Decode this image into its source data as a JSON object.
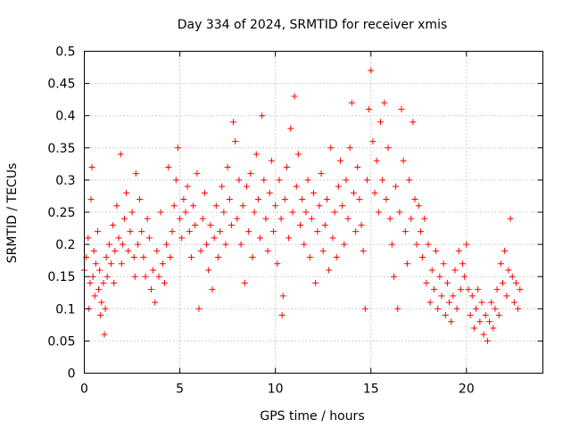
{
  "chart_data": {
    "type": "scatter",
    "title": "Day 334 of 2024, SRMTID for receiver xmis",
    "xlabel": "GPS time / hours",
    "ylabel": "SRMTID / TECUs",
    "xlim": [
      0,
      24
    ],
    "ylim": [
      0,
      0.5
    ],
    "xticks": [
      0,
      5,
      10,
      15,
      20
    ],
    "xtick_labels": [
      "0",
      "5",
      "10",
      "15",
      "20"
    ],
    "yticks": [
      0,
      0.05,
      0.1,
      0.15,
      0.2,
      0.25,
      0.3,
      0.35,
      0.4,
      0.45,
      0.5
    ],
    "ytick_labels": [
      "0",
      "0.05",
      "0.1",
      "0.15",
      "0.2",
      "0.25",
      "0.3",
      "0.35",
      "0.4",
      "0.45",
      "0.5"
    ],
    "grid": true,
    "marker": "+",
    "color": "#ff0000",
    "series": [
      {
        "name": "SRMTID",
        "points": [
          [
            0.0,
            0.16
          ],
          [
            0.1,
            0.18
          ],
          [
            0.2,
            0.21
          ],
          [
            0.25,
            0.1
          ],
          [
            0.3,
            0.14
          ],
          [
            0.35,
            0.27
          ],
          [
            0.4,
            0.32
          ],
          [
            0.45,
            0.15
          ],
          [
            0.5,
            0.19
          ],
          [
            0.55,
            0.12
          ],
          [
            0.6,
            0.17
          ],
          [
            0.7,
            0.22
          ],
          [
            0.75,
            0.13
          ],
          [
            0.8,
            0.16
          ],
          [
            0.85,
            0.09
          ],
          [
            0.9,
            0.11
          ],
          [
            1.0,
            0.14
          ],
          [
            1.05,
            0.06
          ],
          [
            1.1,
            0.1
          ],
          [
            1.15,
            0.18
          ],
          [
            1.2,
            0.15
          ],
          [
            1.3,
            0.2
          ],
          [
            1.4,
            0.17
          ],
          [
            1.5,
            0.23
          ],
          [
            1.55,
            0.14
          ],
          [
            1.6,
            0.19
          ],
          [
            1.7,
            0.26
          ],
          [
            1.8,
            0.21
          ],
          [
            1.9,
            0.34
          ],
          [
            1.95,
            0.17
          ],
          [
            2.0,
            0.2
          ],
          [
            2.1,
            0.24
          ],
          [
            2.2,
            0.28
          ],
          [
            2.3,
            0.19
          ],
          [
            2.4,
            0.22
          ],
          [
            2.5,
            0.25
          ],
          [
            2.6,
            0.18
          ],
          [
            2.65,
            0.15
          ],
          [
            2.7,
            0.31
          ],
          [
            2.8,
            0.2
          ],
          [
            2.9,
            0.27
          ],
          [
            3.0,
            0.22
          ],
          [
            3.1,
            0.18
          ],
          [
            3.2,
            0.15
          ],
          [
            3.3,
            0.24
          ],
          [
            3.4,
            0.21
          ],
          [
            3.5,
            0.13
          ],
          [
            3.6,
            0.16
          ],
          [
            3.7,
            0.11
          ],
          [
            3.8,
            0.19
          ],
          [
            3.9,
            0.15
          ],
          [
            4.0,
            0.25
          ],
          [
            4.1,
            0.17
          ],
          [
            4.2,
            0.14
          ],
          [
            4.3,
            0.2
          ],
          [
            4.4,
            0.32
          ],
          [
            4.5,
            0.18
          ],
          [
            4.6,
            0.22
          ],
          [
            4.7,
            0.26
          ],
          [
            4.8,
            0.3
          ],
          [
            4.9,
            0.35
          ],
          [
            5.0,
            0.24
          ],
          [
            5.1,
            0.21
          ],
          [
            5.2,
            0.27
          ],
          [
            5.3,
            0.25
          ],
          [
            5.4,
            0.29
          ],
          [
            5.5,
            0.22
          ],
          [
            5.6,
            0.18
          ],
          [
            5.7,
            0.26
          ],
          [
            5.8,
            0.23
          ],
          [
            5.9,
            0.31
          ],
          [
            6.0,
            0.1
          ],
          [
            6.1,
            0.19
          ],
          [
            6.2,
            0.24
          ],
          [
            6.3,
            0.28
          ],
          [
            6.4,
            0.2
          ],
          [
            6.5,
            0.16
          ],
          [
            6.6,
            0.23
          ],
          [
            6.7,
            0.13
          ],
          [
            6.8,
            0.21
          ],
          [
            6.9,
            0.26
          ],
          [
            7.0,
            0.18
          ],
          [
            7.1,
            0.22
          ],
          [
            7.2,
            0.29
          ],
          [
            7.3,
            0.25
          ],
          [
            7.4,
            0.2
          ],
          [
            7.5,
            0.32
          ],
          [
            7.6,
            0.27
          ],
          [
            7.7,
            0.23
          ],
          [
            7.8,
            0.39
          ],
          [
            7.9,
            0.36
          ],
          [
            8.0,
            0.24
          ],
          [
            8.1,
            0.3
          ],
          [
            8.2,
            0.2
          ],
          [
            8.3,
            0.26
          ],
          [
            8.4,
            0.14
          ],
          [
            8.5,
            0.29
          ],
          [
            8.6,
            0.22
          ],
          [
            8.7,
            0.31
          ],
          [
            8.8,
            0.18
          ],
          [
            8.9,
            0.25
          ],
          [
            9.0,
            0.34
          ],
          [
            9.1,
            0.27
          ],
          [
            9.2,
            0.21
          ],
          [
            9.3,
            0.4
          ],
          [
            9.4,
            0.3
          ],
          [
            9.5,
            0.24
          ],
          [
            9.6,
            0.19
          ],
          [
            9.7,
            0.28
          ],
          [
            9.8,
            0.33
          ],
          [
            9.9,
            0.22
          ],
          [
            10.0,
            0.26
          ],
          [
            10.1,
            0.17
          ],
          [
            10.2,
            0.3
          ],
          [
            10.3,
            0.24
          ],
          [
            10.35,
            0.09
          ],
          [
            10.4,
            0.12
          ],
          [
            10.5,
            0.27
          ],
          [
            10.6,
            0.32
          ],
          [
            10.7,
            0.21
          ],
          [
            10.8,
            0.38
          ],
          [
            10.9,
            0.25
          ],
          [
            11.0,
            0.43
          ],
          [
            11.1,
            0.29
          ],
          [
            11.2,
            0.34
          ],
          [
            11.3,
            0.23
          ],
          [
            11.4,
            0.27
          ],
          [
            11.5,
            0.2
          ],
          [
            11.6,
            0.25
          ],
          [
            11.7,
            0.3
          ],
          [
            11.8,
            0.18
          ],
          [
            11.9,
            0.24
          ],
          [
            12.0,
            0.28
          ],
          [
            12.1,
            0.14
          ],
          [
            12.2,
            0.22
          ],
          [
            12.3,
            0.26
          ],
          [
            12.4,
            0.31
          ],
          [
            12.5,
            0.19
          ],
          [
            12.6,
            0.23
          ],
          [
            12.7,
            0.27
          ],
          [
            12.8,
            0.16
          ],
          [
            12.9,
            0.35
          ],
          [
            13.0,
            0.21
          ],
          [
            13.1,
            0.25
          ],
          [
            13.2,
            0.18
          ],
          [
            13.3,
            0.29
          ],
          [
            13.4,
            0.33
          ],
          [
            13.5,
            0.26
          ],
          [
            13.6,
            0.2
          ],
          [
            13.7,
            0.3
          ],
          [
            13.8,
            0.24
          ],
          [
            13.9,
            0.35
          ],
          [
            14.0,
            0.42
          ],
          [
            14.1,
            0.28
          ],
          [
            14.2,
            0.22
          ],
          [
            14.3,
            0.32
          ],
          [
            14.4,
            0.27
          ],
          [
            14.5,
            0.23
          ],
          [
            14.6,
            0.19
          ],
          [
            14.7,
            0.1
          ],
          [
            14.8,
            0.3
          ],
          [
            14.9,
            0.41
          ],
          [
            15.0,
            0.47
          ],
          [
            15.1,
            0.36
          ],
          [
            15.2,
            0.28
          ],
          [
            15.3,
            0.33
          ],
          [
            15.4,
            0.25
          ],
          [
            15.5,
            0.39
          ],
          [
            15.6,
            0.3
          ],
          [
            15.7,
            0.42
          ],
          [
            15.8,
            0.27
          ],
          [
            15.9,
            0.35
          ],
          [
            16.0,
            0.24
          ],
          [
            16.1,
            0.2
          ],
          [
            16.2,
            0.15
          ],
          [
            16.3,
            0.29
          ],
          [
            16.4,
            0.1
          ],
          [
            16.5,
            0.25
          ],
          [
            16.6,
            0.41
          ],
          [
            16.7,
            0.33
          ],
          [
            16.8,
            0.22
          ],
          [
            16.9,
            0.17
          ],
          [
            17.0,
            0.3
          ],
          [
            17.1,
            0.24
          ],
          [
            17.2,
            0.39
          ],
          [
            17.3,
            0.27
          ],
          [
            17.4,
            0.2
          ],
          [
            17.5,
            0.26
          ],
          [
            17.6,
            0.22
          ],
          [
            17.7,
            0.18
          ],
          [
            17.8,
            0.24
          ],
          [
            17.9,
            0.14
          ],
          [
            18.0,
            0.2
          ],
          [
            18.1,
            0.11
          ],
          [
            18.2,
            0.16
          ],
          [
            18.3,
            0.13
          ],
          [
            18.4,
            0.19
          ],
          [
            18.5,
            0.1
          ],
          [
            18.6,
            0.15
          ],
          [
            18.7,
            0.12
          ],
          [
            18.8,
            0.17
          ],
          [
            18.9,
            0.09
          ],
          [
            19.0,
            0.14
          ],
          [
            19.1,
            0.11
          ],
          [
            19.2,
            0.08
          ],
          [
            19.3,
            0.12
          ],
          [
            19.4,
            0.16
          ],
          [
            19.5,
            0.1
          ],
          [
            19.6,
            0.19
          ],
          [
            19.7,
            0.13
          ],
          [
            19.8,
            0.17
          ],
          [
            19.9,
            0.15
          ],
          [
            20.0,
            0.2
          ],
          [
            20.1,
            0.13
          ],
          [
            20.2,
            0.09
          ],
          [
            20.3,
            0.12
          ],
          [
            20.4,
            0.07
          ],
          [
            20.5,
            0.1
          ],
          [
            20.6,
            0.13
          ],
          [
            20.7,
            0.08
          ],
          [
            20.8,
            0.11
          ],
          [
            20.9,
            0.06
          ],
          [
            21.0,
            0.09
          ],
          [
            21.1,
            0.05
          ],
          [
            21.2,
            0.08
          ],
          [
            21.3,
            0.11
          ],
          [
            21.4,
            0.07
          ],
          [
            21.5,
            0.1
          ],
          [
            21.6,
            0.13
          ],
          [
            21.7,
            0.09
          ],
          [
            21.8,
            0.17
          ],
          [
            21.9,
            0.14
          ],
          [
            22.0,
            0.19
          ],
          [
            22.1,
            0.12
          ],
          [
            22.2,
            0.16
          ],
          [
            22.3,
            0.24
          ],
          [
            22.4,
            0.15
          ],
          [
            22.5,
            0.11
          ],
          [
            22.6,
            0.14
          ],
          [
            22.7,
            0.1
          ],
          [
            22.8,
            0.13
          ]
        ]
      }
    ]
  }
}
